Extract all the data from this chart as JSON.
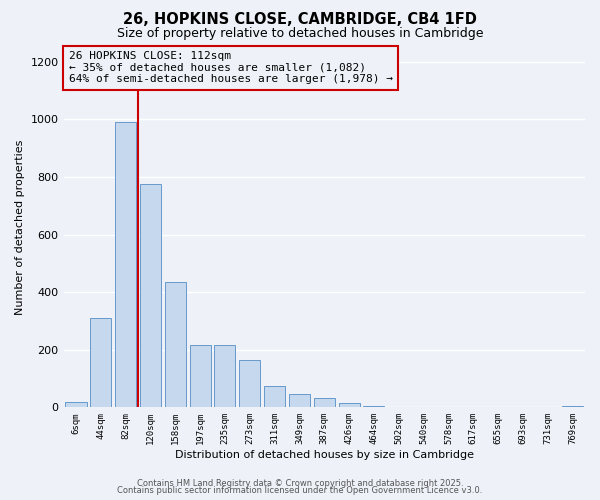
{
  "title": "26, HOPKINS CLOSE, CAMBRIDGE, CB4 1FD",
  "subtitle": "Size of property relative to detached houses in Cambridge",
  "xlabel": "Distribution of detached houses by size in Cambridge",
  "ylabel": "Number of detached properties",
  "bar_labels": [
    "6sqm",
    "44sqm",
    "82sqm",
    "120sqm",
    "158sqm",
    "197sqm",
    "235sqm",
    "273sqm",
    "311sqm",
    "349sqm",
    "387sqm",
    "426sqm",
    "464sqm",
    "502sqm",
    "540sqm",
    "578sqm",
    "617sqm",
    "655sqm",
    "693sqm",
    "731sqm",
    "769sqm"
  ],
  "bar_values": [
    20,
    310,
    990,
    775,
    435,
    215,
    215,
    165,
    75,
    47,
    32,
    15,
    4,
    1,
    1,
    0,
    0,
    0,
    0,
    0,
    3
  ],
  "bar_color": "#c5d8ed",
  "bar_edge_color": "#6699cc",
  "vline_color": "#cc0000",
  "vline_x_idx": 3,
  "ylim": [
    0,
    1250
  ],
  "yticks": [
    0,
    200,
    400,
    600,
    800,
    1000,
    1200
  ],
  "bg_color": "#eef2f8",
  "grid_color": "white",
  "annotation_text_line1": "26 HOPKINS CLOSE: 112sqm",
  "annotation_text_line2": "← 35% of detached houses are smaller (1,082)",
  "annotation_text_line3": "64% of semi-detached houses are larger (1,978) →",
  "footer1": "Contains HM Land Registry data © Crown copyright and database right 2025.",
  "footer2": "Contains public sector information licensed under the Open Government Licence v3.0."
}
